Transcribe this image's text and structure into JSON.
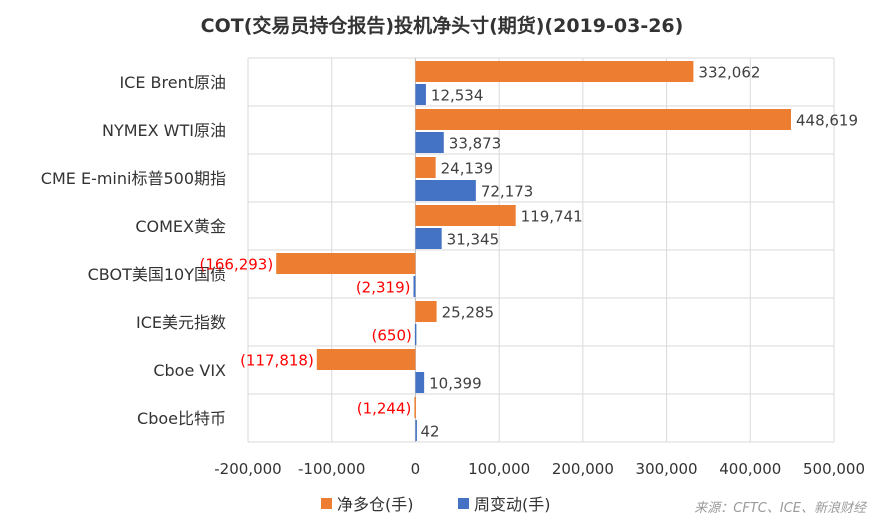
{
  "chart_data": {
    "type": "bar",
    "orientation": "horizontal",
    "title": "COT(交易员持仓报告)投机净头寸(期货)(2019-03-26)",
    "categories": [
      "ICE Brent原油",
      "NYMEX WTI原油",
      "CME E-mini标普500期指",
      "COMEX黄金",
      "CBOT美国10Y国债",
      "ICE美元指数",
      "Cboe VIX",
      "Cboe比特币"
    ],
    "series": [
      {
        "name": "净多仓(手)",
        "color": "#ED7D31",
        "values": [
          332062,
          448619,
          24139,
          119741,
          -166293,
          25285,
          -117818,
          -1244
        ],
        "labels": [
          "332,062",
          "448,619",
          "24,139",
          "119,741",
          "(166,293)",
          "25,285",
          "(117,818)",
          "(1,244)"
        ]
      },
      {
        "name": "周变动(手)",
        "color": "#4472C4",
        "values": [
          12534,
          33873,
          72173,
          31345,
          -2319,
          -650,
          10399,
          42
        ],
        "labels": [
          "12,534",
          "33,873",
          "72,173",
          "31,345",
          "(2,319)",
          "(650)",
          "10,399",
          "42"
        ]
      }
    ],
    "xlim": [
      -200000,
      500000
    ],
    "xticks": [
      -200000,
      -100000,
      0,
      100000,
      200000,
      300000,
      400000,
      500000
    ],
    "xtick_labels": [
      "-200,000",
      "-100,000",
      "0",
      "100,000",
      "200,000",
      "300,000",
      "400,000",
      "500,000"
    ],
    "negative_label_color": "#FF0000",
    "positive_label_color": "#404040",
    "grid": true,
    "legend_position": "bottom"
  },
  "source": "来源：CFTC、ICE、新浪财经"
}
